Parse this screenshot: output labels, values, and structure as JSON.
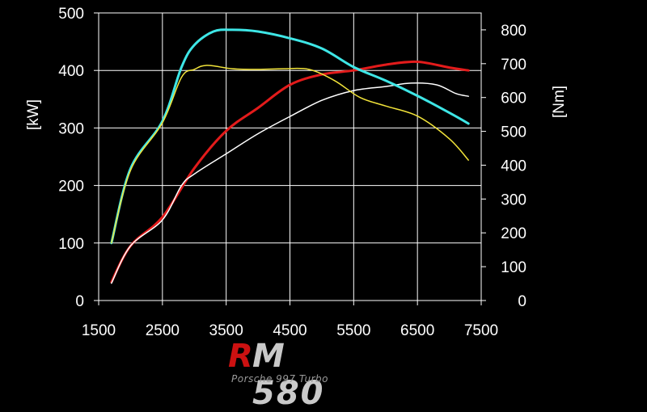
{
  "chart_data": {
    "type": "line",
    "title": "",
    "xlabel": "",
    "ylabel_left": "[kW]",
    "ylabel_right": "[Nm]",
    "xlim": [
      1500,
      7500
    ],
    "ylim_left": [
      0,
      500
    ],
    "ylim_right": [
      0,
      850
    ],
    "x_ticks": [
      "1500",
      "2500",
      "3500",
      "4500",
      "5500",
      "6500",
      "7500"
    ],
    "y_left_ticks": [
      "0",
      "100",
      "200",
      "300",
      "400",
      "500"
    ],
    "y_right_ticks": [
      "0",
      "100",
      "200",
      "300",
      "400",
      "500",
      "600",
      "700",
      "800"
    ],
    "grid": true,
    "series": [
      {
        "axis": "left",
        "color": "#e31b1b",
        "points": [
          [
            1700,
            32
          ],
          [
            2000,
            95
          ],
          [
            2500,
            145
          ],
          [
            3000,
            230
          ],
          [
            3500,
            295
          ],
          [
            4000,
            335
          ],
          [
            4500,
            375
          ],
          [
            5000,
            393
          ],
          [
            5500,
            400
          ],
          [
            6000,
            410
          ],
          [
            6500,
            415
          ],
          [
            7000,
            405
          ],
          [
            7300,
            400
          ]
        ]
      },
      {
        "axis": "left",
        "color": "#ffffff",
        "points": [
          [
            1700,
            30
          ],
          [
            2000,
            95
          ],
          [
            2500,
            140
          ],
          [
            2800,
            200
          ],
          [
            3000,
            220
          ],
          [
            3500,
            255
          ],
          [
            4000,
            290
          ],
          [
            4500,
            320
          ],
          [
            5000,
            348
          ],
          [
            5500,
            365
          ],
          [
            6000,
            372
          ],
          [
            6400,
            378
          ],
          [
            6800,
            375
          ],
          [
            7100,
            360
          ],
          [
            7300,
            355
          ]
        ]
      },
      {
        "axis": "right",
        "color": "#3ee6e6",
        "points": [
          [
            1700,
            170
          ],
          [
            2000,
            390
          ],
          [
            2500,
            530
          ],
          [
            2800,
            690
          ],
          [
            3000,
            755
          ],
          [
            3300,
            795
          ],
          [
            3600,
            800
          ],
          [
            4000,
            795
          ],
          [
            4500,
            775
          ],
          [
            5000,
            745
          ],
          [
            5500,
            690
          ],
          [
            6000,
            650
          ],
          [
            6500,
            605
          ],
          [
            7000,
            555
          ],
          [
            7300,
            523
          ]
        ]
      },
      {
        "axis": "right",
        "color": "#f2e43a",
        "points": [
          [
            1700,
            170
          ],
          [
            2000,
            385
          ],
          [
            2500,
            525
          ],
          [
            2800,
            660
          ],
          [
            3000,
            683
          ],
          [
            3200,
            695
          ],
          [
            3600,
            685
          ],
          [
            4000,
            683
          ],
          [
            4400,
            685
          ],
          [
            4800,
            683
          ],
          [
            5200,
            650
          ],
          [
            5600,
            600
          ],
          [
            6000,
            575
          ],
          [
            6500,
            545
          ],
          [
            7000,
            478
          ],
          [
            7300,
            415
          ]
        ]
      }
    ]
  },
  "logo": {
    "r": "R",
    "rest": "M 580",
    "subtitle": "Porsche 997 Turbo",
    "r_color": "#cc1111",
    "rest_color": "#c9c9c9"
  }
}
